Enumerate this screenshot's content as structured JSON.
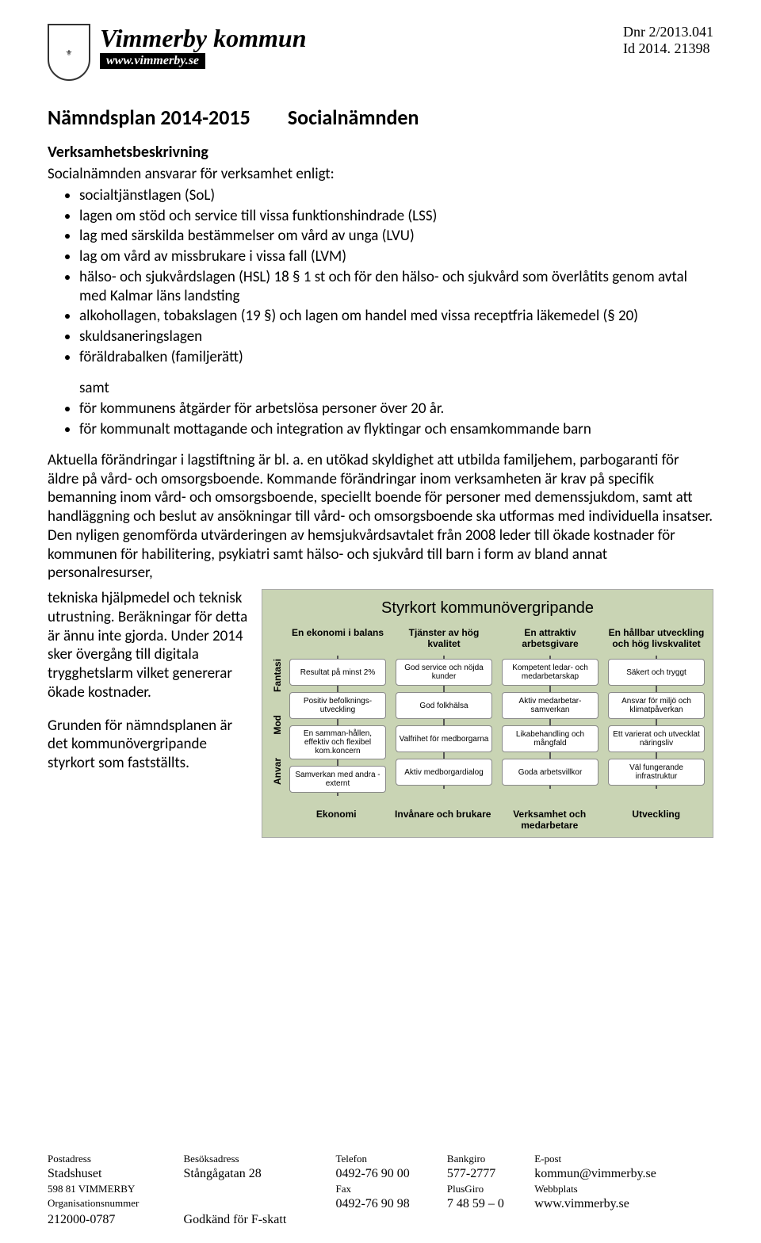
{
  "header": {
    "kommun_name": "Vimmerby kommun",
    "kommun_url": "www.vimmerby.se",
    "dnr": "Dnr 2/2013.041",
    "id": "Id 2014. 21398"
  },
  "title_line": {
    "a": "Nämndsplan 2014-2015",
    "b": "Socialnämnden"
  },
  "section_heading": "Verksamhetsbeskrivning",
  "intro_line": "Socialnämnden ansvarar för verksamhet enligt:",
  "bullets1": [
    "socialtjänstlagen (SoL)",
    "lagen om stöd och service till vissa funktionshindrade (LSS)",
    "lag med särskilda bestämmelser om vård av unga (LVU)",
    "lag om vård av missbrukare i vissa fall (LVM)",
    "hälso- och sjukvårdslagen (HSL) 18 § 1 st och för den hälso- och sjukvård som överlåtits genom avtal med Kalmar läns landsting",
    "alkohollagen, tobakslagen (19 §) och lagen om handel med vissa receptfria läkemedel (§ 20)",
    "skuldsaneringslagen",
    "föräldrabalken (familjerätt)"
  ],
  "samt": "samt",
  "bullets2": [
    "för kommunens åtgärder för arbetslösa personer över 20 år.",
    "för kommunalt mottagande och integration av flyktingar och ensamkommande barn"
  ],
  "para": "Aktuella förändringar i lagstiftning är bl. a. en utökad skyldighet att utbilda familjehem, parbogaranti för äldre på vård- och omsorgsboende. Kommande förändringar inom verksamheten är krav på specifik bemanning inom vård- och omsorgsboende, speciellt boende för personer med demenssjukdom, samt att handläggning och beslut av ansökningar till vård- och omsorgsboende ska utformas med individuella insatser. Den nyligen genomförda utvärderingen av hemsjukvårdsavtalet från 2008 leder till ökade kostnader för kommunen för habilitering, psykiatri samt hälso- och sjukvård till barn i form av bland annat personalresurser,",
  "left_block1": "tekniska hjälpmedel och teknisk utrustning. Beräkningar för detta är ännu inte gjorda. Under 2014 sker övergång till digitala trygghetslarm vilket genererar ökade kostnader.",
  "left_block2": "Grunden för nämndsplanen är det kommunövergripande styrkort som fastställts.",
  "styrkort": {
    "title": "Styrkort kommunövergripande",
    "side_labels": [
      "Fantasi",
      "Mod",
      "Anvar"
    ],
    "columns": [
      {
        "head": "En ekonomi i balans",
        "boxes": [
          "Resultat på minst 2%",
          "Positiv befolknings-utveckling",
          "En samman-hållen, effektiv och flexibel kom.koncern",
          "Samverkan med andra - externt"
        ]
      },
      {
        "head": "Tjänster av hög kvalitet",
        "boxes": [
          "God service och nöjda kunder",
          "God folkhälsa",
          "Valfrihet för medborgarna",
          "Aktiv medborgardialog"
        ]
      },
      {
        "head": "En attraktiv arbetsgivare",
        "boxes": [
          "Kompetent ledar- och medarbetarskap",
          "Aktiv medarbetar-samverkan",
          "Likabehandling och mångfald",
          "Goda arbetsvillkor"
        ]
      },
      {
        "head": "En hållbar utveckling och hög livskvalitet",
        "boxes": [
          "Säkert och tryggt",
          "Ansvar för miljö och klimatpåverkan",
          "Ett varierat och utvecklat näringsliv",
          "Väl fungerande infrastruktur"
        ]
      }
    ],
    "bottom": [
      "Ekonomi",
      "Invånare och brukare",
      "Verksamhet och medarbetare",
      "Utveckling"
    ],
    "bg_color": "#c9d4b4",
    "box_bg": "#ffffff"
  },
  "footer": {
    "rows": [
      [
        "Postadress",
        "Besöksadress",
        "Telefon",
        "Bankgiro",
        "E-post"
      ],
      [
        "Stadshuset",
        "Stångågatan 28",
        "0492-76 90 00",
        "577-2777",
        "kommun@vimmerby.se"
      ],
      [
        "598 81  VIMMERBY",
        "",
        "Fax",
        "PlusGiro",
        "Webbplats"
      ],
      [
        "Organisationsnummer",
        "",
        "0492-76 90 98",
        "7 48 59 – 0",
        "www.vimmerby.se"
      ],
      [
        "212000-0787",
        "Godkänd för F-skatt",
        "",
        "",
        ""
      ]
    ]
  }
}
